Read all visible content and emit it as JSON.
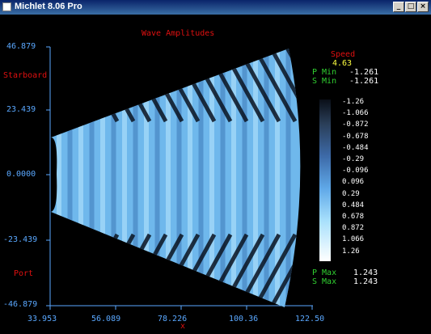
{
  "window": {
    "title": "Michlet 8.06 Pro",
    "buttons": [
      "_",
      "□",
      "×"
    ]
  },
  "plot": {
    "title": "Wave Amplitudes",
    "label_starboard": "Starboard",
    "label_port": "Port",
    "x_axis_symbol": "x",
    "speed_label": "Speed",
    "speed_value": "4.63",
    "p_min_label": "P Min",
    "p_min_value": "-1.261",
    "s_min_label": "S Min",
    "s_min_value": "-1.261",
    "p_max_label": "P Max",
    "p_max_value": "1.243",
    "s_max_label": "S Max",
    "s_max_value": "1.243",
    "y_ticks": [
      "46.879",
      "23.439",
      "0.0000",
      "-23.439",
      "-46.879"
    ],
    "x_ticks": [
      "33.953",
      "56.089",
      "78.226",
      "100.36",
      "122.50"
    ],
    "scale_labels": [
      "-1.26",
      "-1.066",
      "-0.872",
      "-0.678",
      "-0.484",
      "-0.29",
      "-0.096",
      "0.096",
      "0.29",
      "0.484",
      "0.678",
      "0.872",
      "1.066",
      "1.26"
    ]
  },
  "chart_data": {
    "type": "heatmap",
    "title": "Wave Amplitudes",
    "xlabel": "x",
    "ylabel": "",
    "xlim": [
      33.953,
      122.5
    ],
    "ylim": [
      -46.879,
      46.879
    ],
    "x_ticks": [
      33.953,
      56.089,
      78.226,
      100.36,
      122.5
    ],
    "y_ticks": [
      46.879,
      23.439,
      0.0,
      -23.439,
      -46.879
    ],
    "color_scale": [
      -1.26,
      -1.066,
      -0.872,
      -0.678,
      -0.484,
      -0.29,
      -0.096,
      0.096,
      0.29,
      0.484,
      0.678,
      0.872,
      1.066,
      1.26
    ],
    "speed": 4.63,
    "p_min": -1.261,
    "s_min": -1.261,
    "p_max": 1.243,
    "s_max": 1.243,
    "grid": false
  },
  "colors": {
    "axis": "#5aa8ff",
    "label_red": "#e01010",
    "label_green": "#30d030",
    "speed_value": "#ffff40"
  }
}
